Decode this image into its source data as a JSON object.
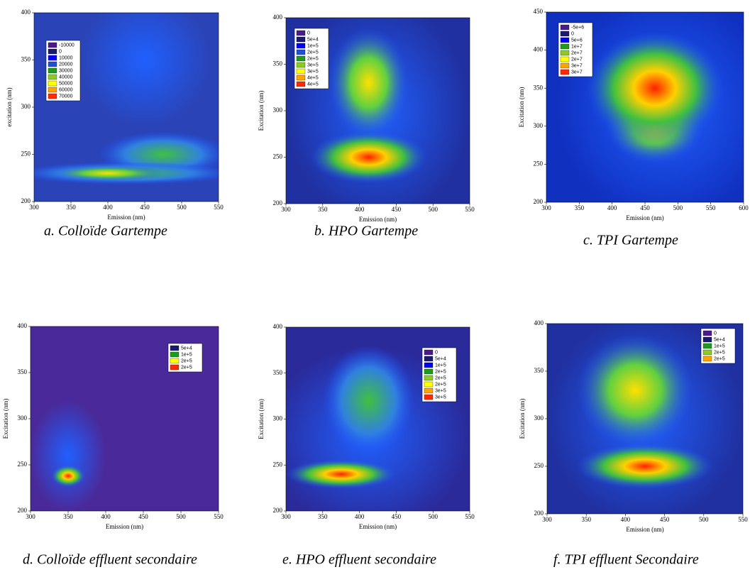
{
  "chart_data": [
    {
      "type": "contour",
      "title": "a. Colloïde Gartempe",
      "xlabel": "Emission (nm)",
      "ylabel": "excitation (nm)",
      "xlim": [
        300,
        550
      ],
      "xticks": [
        300,
        350,
        400,
        450,
        500,
        550
      ],
      "ylim": [
        200,
        400
      ],
      "yticks": [
        200,
        250,
        300,
        350,
        400
      ],
      "series": [
        {
          "name": "-10000",
          "color": "#4b1a8c"
        },
        {
          "name": "0",
          "color": "#1a1a6e"
        },
        {
          "name": "10000",
          "color": "#0000ff"
        },
        {
          "name": "20000",
          "color": "#2050d8"
        },
        {
          "name": "30000",
          "color": "#1f9a1f"
        },
        {
          "name": "40000",
          "color": "#8ccc22"
        },
        {
          "name": "50000",
          "color": "#ffff00"
        },
        {
          "name": "60000",
          "color": "#ffa500"
        },
        {
          "name": "70000",
          "color": "#ff2a00"
        }
      ]
    },
    {
      "type": "contour",
      "title": "b. HPO Gartempe",
      "xlabel": "Emission (nm)",
      "ylabel": "Excitation (nm)",
      "xlim": [
        300,
        550
      ],
      "xticks": [
        300,
        350,
        400,
        450,
        500,
        550
      ],
      "ylim": [
        200,
        400
      ],
      "yticks": [
        200,
        250,
        300,
        350,
        400
      ],
      "series": [
        {
          "name": "0",
          "color": "#4b1a8c"
        },
        {
          "name": "5e+4",
          "color": "#1a1a6e"
        },
        {
          "name": "1e+5",
          "color": "#0000ff"
        },
        {
          "name": "2e+5",
          "color": "#2050d8"
        },
        {
          "name": "2e+5",
          "color": "#1f9a1f"
        },
        {
          "name": "3e+5",
          "color": "#8ccc22"
        },
        {
          "name": "3e+5",
          "color": "#ffff00"
        },
        {
          "name": "4e+5",
          "color": "#ffa500"
        },
        {
          "name": "4e+5",
          "color": "#ff2a00"
        }
      ]
    },
    {
      "type": "contour",
      "title": "c. TPI Gartempe",
      "xlabel": "Emission (nm)",
      "ylabel": "Excitation (nm)",
      "xlim": [
        300,
        600
      ],
      "xticks": [
        300,
        350,
        400,
        450,
        500,
        550,
        600
      ],
      "ylim": [
        200,
        450
      ],
      "yticks": [
        200,
        250,
        300,
        350,
        400,
        450
      ],
      "series": [
        {
          "name": "-5e+6",
          "color": "#4b1a8c"
        },
        {
          "name": "0",
          "color": "#1a1a6e"
        },
        {
          "name": "5e+6",
          "color": "#0000ff"
        },
        {
          "name": "1e+7",
          "color": "#1f9a1f"
        },
        {
          "name": "2e+7",
          "color": "#8ccc22"
        },
        {
          "name": "2e+7",
          "color": "#ffff00"
        },
        {
          "name": "3e+7",
          "color": "#ffa500"
        },
        {
          "name": "3e+7",
          "color": "#ff2a00"
        }
      ]
    },
    {
      "type": "contour",
      "title": "d. Colloïde effluent secondaire",
      "xlabel": "Emission (nm)",
      "ylabel": "Excitation (nm)",
      "xlim": [
        300,
        550
      ],
      "xticks": [
        300,
        350,
        400,
        450,
        500,
        550
      ],
      "ylim": [
        200,
        400
      ],
      "yticks": [
        200,
        250,
        300,
        350,
        400
      ],
      "series": [
        {
          "name": "5e+4",
          "color": "#1a1a6e"
        },
        {
          "name": "1e+5",
          "color": "#1f9a1f"
        },
        {
          "name": "2e+5",
          "color": "#ffff00"
        },
        {
          "name": "2e+5",
          "color": "#ff2a00"
        }
      ]
    },
    {
      "type": "contour",
      "title": "e. HPO effluent secondaire",
      "xlabel": "Emission (nm)",
      "ylabel": "Excitation (nm)",
      "xlim": [
        300,
        550
      ],
      "xticks": [
        300,
        350,
        400,
        450,
        500,
        550
      ],
      "ylim": [
        200,
        400
      ],
      "yticks": [
        200,
        250,
        300,
        350,
        400
      ],
      "series": [
        {
          "name": "0",
          "color": "#4b1a8c"
        },
        {
          "name": "5e+4",
          "color": "#1a1a6e"
        },
        {
          "name": "1e+5",
          "color": "#0000ff"
        },
        {
          "name": "2e+5",
          "color": "#1f9a1f"
        },
        {
          "name": "2e+5",
          "color": "#8ccc22"
        },
        {
          "name": "2e+5",
          "color": "#ffff00"
        },
        {
          "name": "3e+5",
          "color": "#ffa500"
        },
        {
          "name": "3e+5",
          "color": "#ff2a00"
        }
      ]
    },
    {
      "type": "contour",
      "title": "f. TPI effluent Secondaire",
      "xlabel": "Emission (nm)",
      "ylabel": "Excitation (nm)",
      "xlim": [
        300,
        550
      ],
      "xticks": [
        300,
        350,
        400,
        450,
        500,
        550
      ],
      "ylim": [
        200,
        400
      ],
      "yticks": [
        200,
        250,
        300,
        350,
        400
      ],
      "series": [
        {
          "name": "0",
          "color": "#4b1a8c"
        },
        {
          "name": "5e+4",
          "color": "#1a1a6e"
        },
        {
          "name": "1e+5",
          "color": "#1f9a1f"
        },
        {
          "name": "2e+5",
          "color": "#8ccc22"
        },
        {
          "name": "2e+5",
          "color": "#ffa500"
        }
      ]
    }
  ]
}
